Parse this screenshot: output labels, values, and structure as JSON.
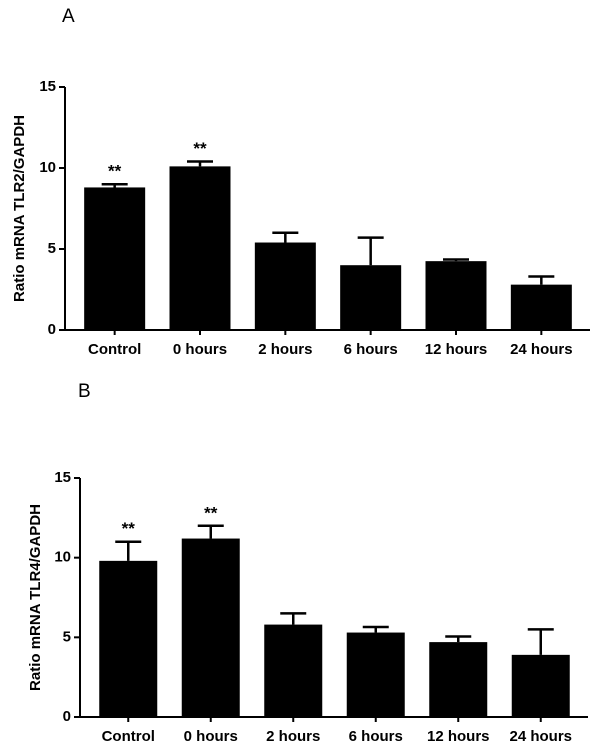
{
  "chart_data": [
    {
      "type": "bar",
      "panel_label": "A",
      "y_label": "Ratio mRNA TLR2/GAPDH",
      "categories": [
        "Control",
        "0 hours",
        "2 hours",
        "6 hours",
        "12 hours",
        "24 hours"
      ],
      "values": [
        8.8,
        10.1,
        5.4,
        4.0,
        4.25,
        2.8
      ],
      "errors": [
        0.2,
        0.3,
        0.6,
        1.7,
        0.1,
        0.5
      ],
      "annotations": [
        "**",
        "**",
        null,
        null,
        null,
        null
      ],
      "color": "#000000",
      "ylim": [
        0,
        15
      ],
      "yticks": [
        0,
        5,
        10,
        15
      ]
    },
    {
      "type": "bar",
      "panel_label": "B",
      "y_label": "Ratio mRNA TLR4/GAPDH",
      "categories": [
        "Control",
        "0 hours",
        "2 hours",
        "6 hours",
        "12 hours",
        "24 hours"
      ],
      "values": [
        9.8,
        11.2,
        5.8,
        5.3,
        4.7,
        3.9
      ],
      "errors": [
        1.2,
        0.8,
        0.7,
        0.35,
        0.35,
        1.6
      ],
      "annotations": [
        "**",
        "**",
        null,
        null,
        null,
        null
      ],
      "color": "#000000",
      "ylim": [
        0,
        15
      ],
      "yticks": [
        0,
        5,
        10,
        15
      ]
    }
  ]
}
